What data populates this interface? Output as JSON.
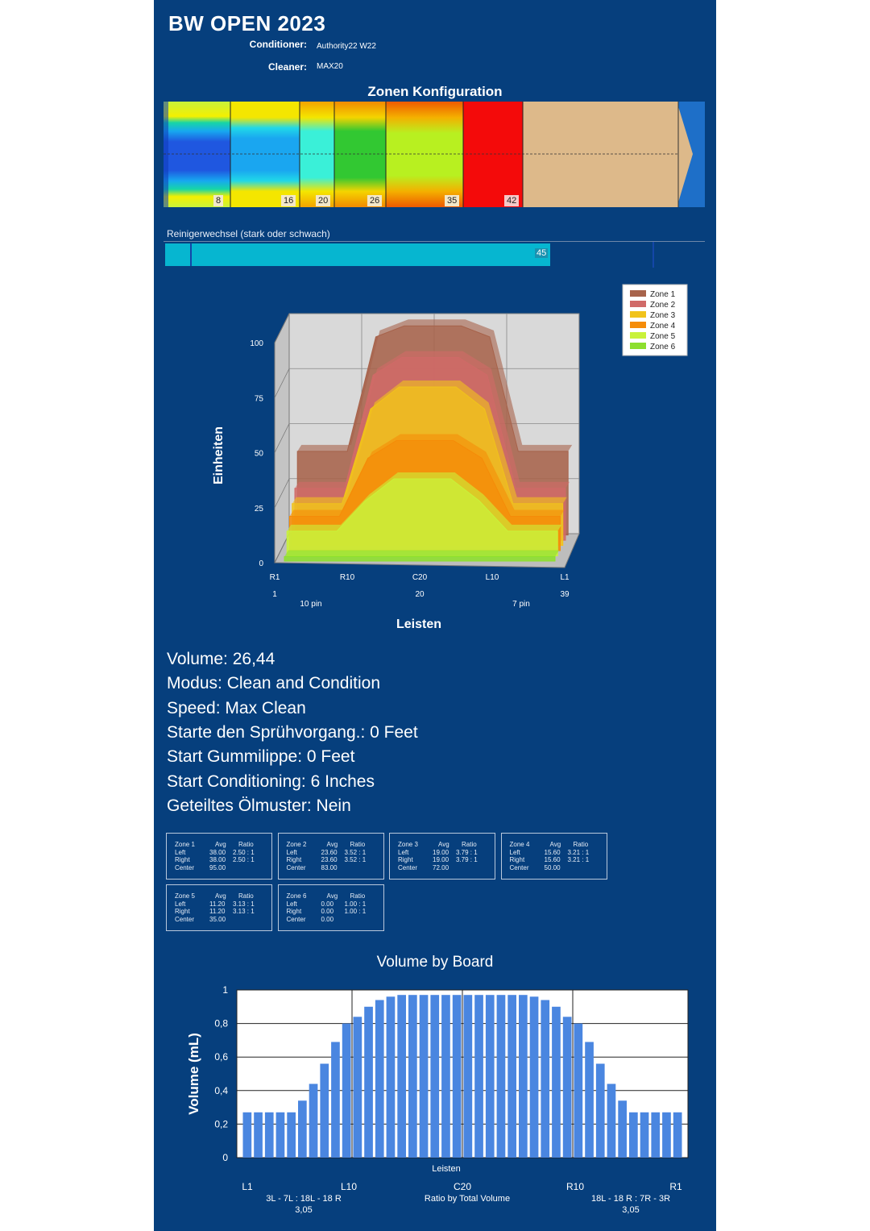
{
  "header": {
    "title": "BW OPEN 2023",
    "conditioner_label": "Conditioner:",
    "conditioner_value": "Authority22 W22",
    "cleaner_label": "Cleaner:",
    "cleaner_value": "MAX20"
  },
  "zone_config": {
    "title": "Zonen Konfiguration",
    "boundaries": [
      "8",
      "16",
      "20",
      "26",
      "35",
      "42"
    ]
  },
  "cleaner_change": {
    "label": "Reinigerwechsel (stark oder schwach)",
    "value": "45"
  },
  "info": [
    "Volume: 26,44",
    "Modus: Clean and Condition",
    "Speed: Max Clean",
    "Starte den Sprühvorgang.: 0 Feet",
    "Start Gummilippe: 0 Feet",
    "Start Conditioning: 6 Inches",
    "Geteiltes Ölmuster: Nein"
  ],
  "zone_tables": [
    {
      "zone": "Zone 1",
      "left_avg": "38.00",
      "left_ratio": "2.50 : 1",
      "right_avg": "38.00",
      "right_ratio": "2.50 : 1",
      "center": "95.00"
    },
    {
      "zone": "Zone 2",
      "left_avg": "23.60",
      "left_ratio": "3.52 : 1",
      "right_avg": "23.60",
      "right_ratio": "3.52 : 1",
      "center": "83.00"
    },
    {
      "zone": "Zone 3",
      "left_avg": "19.00",
      "left_ratio": "3.79 : 1",
      "right_avg": "19.00",
      "right_ratio": "3.79 : 1",
      "center": "72.00"
    },
    {
      "zone": "Zone 4",
      "left_avg": "15.60",
      "left_ratio": "3.21 : 1",
      "right_avg": "15.60",
      "right_ratio": "3.21 : 1",
      "center": "50.00"
    },
    {
      "zone": "Zone 5",
      "left_avg": "11.20",
      "left_ratio": "3.13 : 1",
      "right_avg": "11.20",
      "right_ratio": "3.13 : 1",
      "center": "35.00"
    },
    {
      "zone": "Zone 6",
      "left_avg": "0.00",
      "left_ratio": "1.00 : 1",
      "right_avg": "0.00",
      "right_ratio": "1.00 : 1",
      "center": "0.00"
    }
  ],
  "zone_table_headers": {
    "avg": "Avg",
    "ratio": "Ratio",
    "left": "Left",
    "right": "Right",
    "center": "Center"
  },
  "colors": {
    "panel": "#063f7d",
    "zone1": "#a7634b",
    "zone2": "#d06a68",
    "zone3": "#f1c31b",
    "zone4": "#f58c09",
    "zone5": "#c9f23a",
    "zone6": "#8ddf2e",
    "bar": "#4a86e0"
  },
  "chart_data": [
    {
      "type": "area",
      "ylabel": "Einheiten",
      "xlabel": "Leisten",
      "ylim": [
        0,
        100
      ],
      "yticks": [
        "0",
        "25",
        "50",
        "75",
        "100"
      ],
      "xticks": [
        "R1",
        "R10",
        "C20",
        "L10",
        "L1"
      ],
      "xticks2": [
        "1",
        "20",
        "39"
      ],
      "pin_labels": [
        "10 pin",
        "7 pin"
      ],
      "legend_position": "top-right",
      "x": [
        1,
        5,
        8,
        12,
        16,
        20,
        24,
        28,
        32,
        35,
        39
      ],
      "series": [
        {
          "name": "Zone 1",
          "values": [
            38,
            38,
            38,
            90,
            95,
            95,
            95,
            90,
            38,
            38,
            38
          ]
        },
        {
          "name": "Zone 2",
          "values": [
            23.6,
            23.6,
            23.6,
            75,
            83,
            83,
            83,
            75,
            23.6,
            23.6,
            23.6
          ]
        },
        {
          "name": "Zone 3",
          "values": [
            19,
            19,
            19,
            62,
            72,
            72,
            72,
            62,
            19,
            19,
            19
          ]
        },
        {
          "name": "Zone 4",
          "values": [
            15.6,
            15.6,
            15.6,
            42,
            50,
            50,
            50,
            42,
            15.6,
            15.6,
            15.6
          ]
        },
        {
          "name": "Zone 5",
          "values": [
            11.2,
            11.2,
            11.2,
            25,
            35,
            35,
            35,
            25,
            11.2,
            11.2,
            11.2
          ]
        },
        {
          "name": "Zone 6",
          "values": [
            0,
            0,
            0,
            0,
            0,
            0,
            0,
            0,
            0,
            0,
            0
          ]
        }
      ]
    },
    {
      "type": "bar",
      "title": "Volume by Board",
      "ylabel": "Volume (mL)",
      "xlabel": "Leisten",
      "ylim": [
        0,
        1
      ],
      "yticks": [
        "0",
        "0,2",
        "0,4",
        "0,6",
        "0,8",
        "1"
      ],
      "xticks": [
        "L1",
        "L10",
        "C20",
        "R10",
        "R1"
      ],
      "bottom_left": [
        "3L - 7L : 18L - 18 R",
        "3,05"
      ],
      "bottom_center": "Ratio by Total Volume",
      "bottom_right": [
        "18L - 18 R : 7R - 3R",
        "3,05"
      ],
      "values": [
        0.27,
        0.27,
        0.27,
        0.27,
        0.27,
        0.34,
        0.44,
        0.56,
        0.69,
        0.8,
        0.84,
        0.9,
        0.94,
        0.96,
        0.97,
        0.97,
        0.97,
        0.97,
        0.97,
        0.97,
        0.97,
        0.97,
        0.97,
        0.97,
        0.97,
        0.97,
        0.96,
        0.94,
        0.9,
        0.84,
        0.8,
        0.69,
        0.56,
        0.44,
        0.34,
        0.27,
        0.27,
        0.27,
        0.27,
        0.27
      ]
    }
  ]
}
